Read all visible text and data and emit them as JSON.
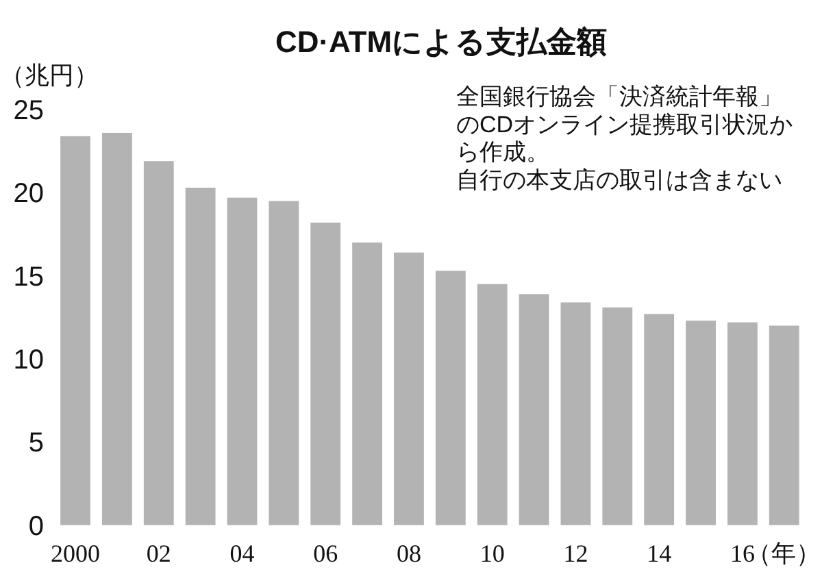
{
  "chart_data": {
    "type": "bar",
    "title": "CD·ATMによる支払金額",
    "ylabel": "（兆円）",
    "xlabel": "（年）",
    "categories": [
      "2000",
      null,
      "02",
      null,
      "04",
      null,
      "06",
      null,
      "08",
      null,
      "10",
      null,
      "12",
      null,
      "14",
      null,
      "16",
      null
    ],
    "values": [
      23.4,
      23.6,
      21.9,
      20.3,
      19.7,
      19.5,
      18.2,
      17.0,
      16.4,
      15.3,
      14.5,
      13.9,
      13.4,
      13.1,
      12.7,
      12.3,
      12.2,
      12.0
    ],
    "color": "#b3b3b3",
    "ylim": [
      0,
      25
    ],
    "yticks": [
      0,
      5,
      10,
      15,
      20,
      25
    ],
    "grid": false,
    "annotations": [
      "全国銀行協会「決済統計年報」のCDオンライン提携取引状況から作成。",
      "自行の本支店の取引は含まない"
    ]
  }
}
